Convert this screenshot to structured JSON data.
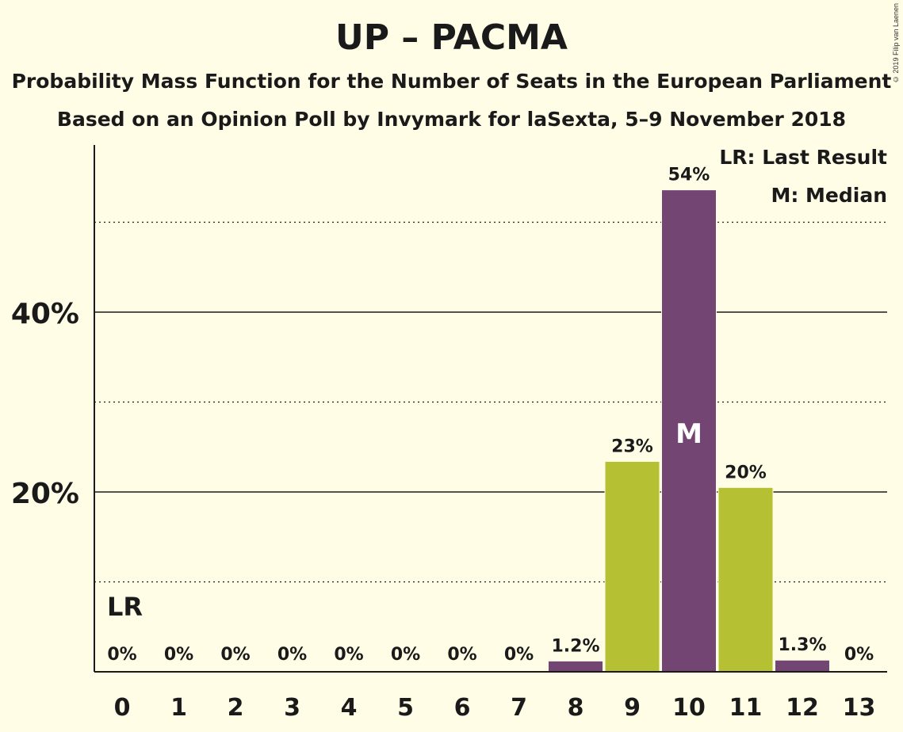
{
  "title": "UP – PACMA",
  "subtitle": "Probability Mass Function for the Number of Seats in the European Parliament",
  "subtitle2": "Based on an Opinion Poll by Invymark for laSexta, 5–9 November 2018",
  "copyright": "© 2019 Filip van Laenen",
  "legend": {
    "last_result": "LR: Last Result",
    "median": "M: Median"
  },
  "colors": {
    "background": "#fffde6",
    "purple": "#734573",
    "green": "#b5c132",
    "text": "#1a1a1a"
  },
  "chart_data": {
    "type": "bar",
    "categories": [
      "0",
      "1",
      "2",
      "3",
      "4",
      "5",
      "6",
      "7",
      "8",
      "9",
      "10",
      "11",
      "12",
      "13"
    ],
    "values": [
      0,
      0,
      0,
      0,
      0,
      0,
      0,
      0,
      1.2,
      23.4,
      53.6,
      20.5,
      1.3,
      0
    ],
    "labels": [
      "0%",
      "0%",
      "0%",
      "0%",
      "0%",
      "0%",
      "0%",
      "0%",
      "1.2%",
      "23%",
      "54%",
      "20%",
      "1.3%",
      "0%"
    ],
    "bar_colors": [
      "purple",
      "purple",
      "purple",
      "purple",
      "purple",
      "purple",
      "purple",
      "purple",
      "purple",
      "green",
      "purple",
      "green",
      "purple",
      "purple"
    ],
    "yticks": [
      20,
      40
    ],
    "ytick_labels": [
      "20%",
      "40%"
    ],
    "dotted_gridlines": [
      10,
      30,
      50
    ],
    "ylim": [
      0,
      58.5
    ],
    "last_result_index": 0,
    "last_result_label": "LR",
    "median_index": 10,
    "median_label": "M"
  }
}
